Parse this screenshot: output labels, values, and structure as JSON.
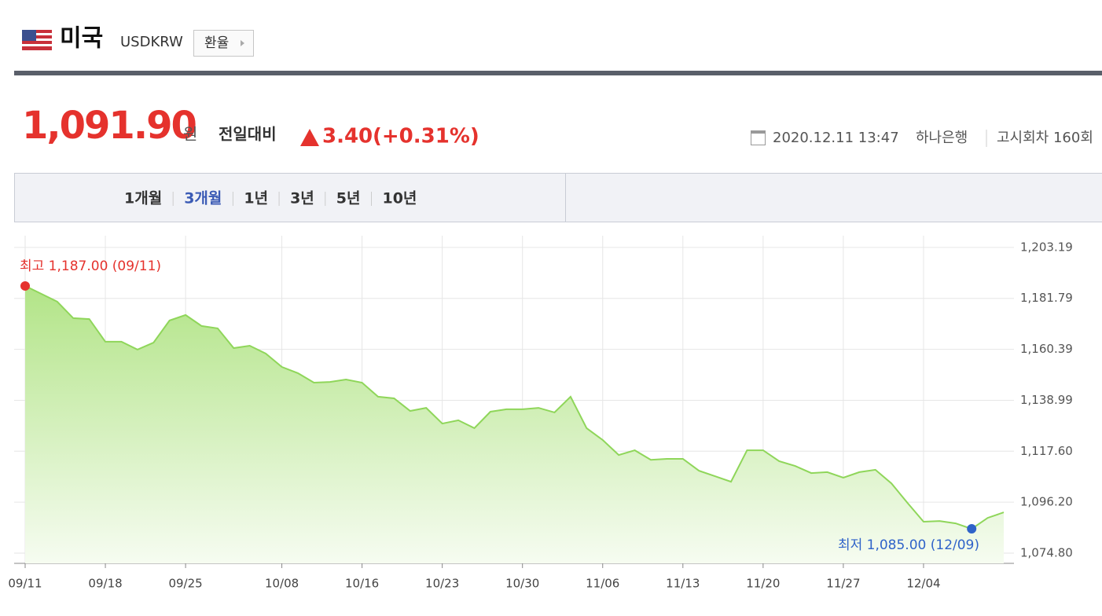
{
  "header": {
    "country": "미국",
    "code": "USDKRW",
    "button": "환율"
  },
  "quote": {
    "price": "1,091.90",
    "unit": "원",
    "change_label": "전일대비",
    "change": "3.40",
    "change_pct": "(+0.31%)",
    "datetime": "2020.12.11 13:47",
    "bank": "하나은행",
    "round": "고시회차 160회"
  },
  "tabs": [
    "1개월",
    "3개월",
    "1년",
    "3년",
    "5년",
    "10년"
  ],
  "active_tab": 1,
  "chart_data": {
    "type": "area",
    "categories": [
      "09/11",
      null,
      null,
      null,
      null,
      "09/18",
      null,
      null,
      null,
      null,
      "09/25",
      null,
      null,
      null,
      null,
      null,
      "10/08",
      null,
      null,
      null,
      null,
      "10/16",
      null,
      null,
      null,
      null,
      "10/23",
      null,
      null,
      null,
      null,
      "10/30",
      null,
      null,
      null,
      null,
      "11/06",
      null,
      null,
      null,
      null,
      "11/13",
      null,
      null,
      null,
      null,
      "11/20",
      null,
      null,
      null,
      null,
      "11/27",
      null,
      null,
      null,
      null,
      "12/04",
      null,
      null,
      null,
      null,
      null
    ],
    "values": [
      1187.0,
      1183.7,
      1180.4,
      1173.5,
      1173.1,
      1163.6,
      1163.6,
      1160.3,
      1163.2,
      1172.5,
      1174.8,
      1170.2,
      1169.2,
      1160.9,
      1161.9,
      1158.6,
      1153.0,
      1150.4,
      1146.4,
      1146.7,
      1147.7,
      1146.4,
      1140.5,
      1139.8,
      1134.5,
      1135.8,
      1129.2,
      1130.6,
      1127.3,
      1134.2,
      1135.2,
      1135.2,
      1135.8,
      1133.9,
      1140.5,
      1127.3,
      1122.3,
      1116.0,
      1118.0,
      1114.0,
      1114.4,
      1114.4,
      1109.4,
      1107.1,
      1104.8,
      1118.0,
      1118.0,
      1113.4,
      1111.4,
      1108.4,
      1108.8,
      1106.5,
      1108.8,
      1109.8,
      1104.1,
      1095.9,
      1088.0,
      1088.3,
      1087.3,
      1085.0,
      1089.6,
      1091.9
    ],
    "color": "#8fd65a",
    "ylim": [
      1070.5,
      1208.1
    ],
    "yticks": [
      {
        "value": 1203.19,
        "label": "1,203.19"
      },
      {
        "value": 1181.79,
        "label": "1,181.79"
      },
      {
        "value": 1160.39,
        "label": "1,160.39"
      },
      {
        "value": 1138.99,
        "label": "1,138.99"
      },
      {
        "value": 1117.6,
        "label": "1,117.60"
      },
      {
        "value": 1096.2,
        "label": "1,096.20"
      },
      {
        "value": 1074.8,
        "label": "1,074.80"
      }
    ],
    "grid": true,
    "max_label": "최고 1,187.00 (09/11)",
    "max_color": "#e5322d",
    "min_label": "최저 1,085.00 (12/09)",
    "min_color": "#2f63c9"
  }
}
